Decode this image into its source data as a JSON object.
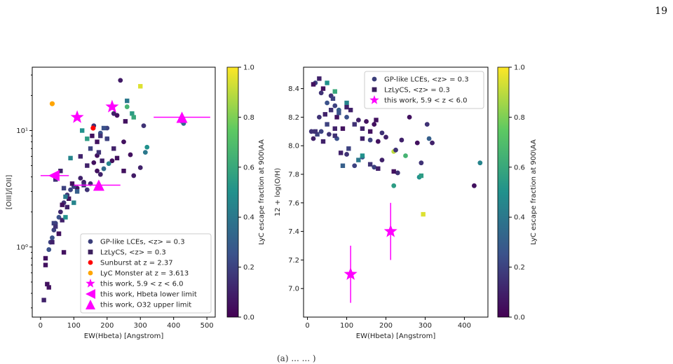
{
  "page_number": "19",
  "caption_fragment": "(a) ... ... )",
  "colormap": {
    "stops": [
      "#440154",
      "#3b528b",
      "#21918c",
      "#5ec962",
      "#fde725"
    ],
    "label": "LyC escape fraction at 900\\AA",
    "ticks": [
      "0.0",
      "0.2",
      "0.4",
      "0.6",
      "0.8",
      "1.0"
    ],
    "range": [
      0,
      1
    ]
  },
  "chart_data": [
    {
      "type": "scatter",
      "id": "left",
      "xlabel": "EW(Hbeta) [Angstrom]",
      "ylabel": "[OIII]/[OII]",
      "xlim": [
        -25,
        525
      ],
      "ylim": [
        0.25,
        35
      ],
      "yscale": "log",
      "xticks": [
        0,
        100,
        200,
        300,
        400,
        500
      ],
      "yticks": [
        {
          "v": 1,
          "label": "10⁰"
        },
        {
          "v": 10,
          "label": "10¹"
        }
      ],
      "legend_position": "lower-right",
      "legend": [
        {
          "marker": "circle",
          "color": "#3b3e7a",
          "label": "GP-like LCEs, <z> = 0.3"
        },
        {
          "marker": "square",
          "color": "#3b1f5c",
          "label": "LzLyCS, <z> = 0.3"
        },
        {
          "marker": "circle",
          "color": "#ff0000",
          "label": "Sunburst at z = 2.37"
        },
        {
          "marker": "circle",
          "color": "#ffa500",
          "label": "LyC Monster at z = 3.613"
        },
        {
          "marker": "star",
          "color": "#ff00ff",
          "label": "this work, 5.9 < z < 6.0"
        },
        {
          "marker": "triangle-left",
          "color": "#ff00ff",
          "label": "this work, Hbeta lower limit"
        },
        {
          "marker": "triangle-up",
          "color": "#ff00ff",
          "label": "this work, O32 upper limit"
        }
      ],
      "gp_circles": [
        [
          240,
          27,
          0.08
        ],
        [
          310,
          11,
          0.15
        ],
        [
          250,
          8,
          0.05
        ],
        [
          200,
          8.5,
          0.1
        ],
        [
          315,
          6.5,
          0.4
        ],
        [
          320,
          7.2,
          0.5
        ],
        [
          270,
          6.2,
          0.05
        ],
        [
          280,
          4.1,
          0.08
        ],
        [
          300,
          4.8,
          0.1
        ],
        [
          215,
          5.5,
          0.05
        ],
        [
          205,
          5.2,
          0.45
        ],
        [
          190,
          4.7,
          0.35
        ],
        [
          180,
          4.2,
          0.1
        ],
        [
          170,
          6.1,
          0.05
        ],
        [
          160,
          5.3,
          0.05
        ],
        [
          170,
          4.5,
          0.05
        ],
        [
          150,
          3.5,
          0.12
        ],
        [
          140,
          3.1,
          0.15
        ],
        [
          130,
          3.6,
          0.1
        ],
        [
          120,
          3.9,
          0.1
        ],
        [
          110,
          3.2,
          0.05
        ],
        [
          100,
          3.3,
          0.2
        ],
        [
          90,
          3.1,
          0.2
        ],
        [
          80,
          2.8,
          0.15
        ],
        [
          70,
          2.4,
          0.15
        ],
        [
          60,
          2.0,
          0.12
        ],
        [
          55,
          1.8,
          0.25
        ],
        [
          45,
          1.6,
          0.2
        ],
        [
          40,
          1.4,
          0.2
        ],
        [
          35,
          1.2,
          0.25
        ],
        [
          30,
          1.1,
          0.2
        ],
        [
          25,
          0.95,
          0.25
        ],
        [
          425,
          12,
          0.45
        ],
        [
          430,
          11.5,
          0.35
        ],
        [
          220,
          14,
          0.1
        ],
        [
          260,
          16,
          0.65
        ],
        [
          230,
          13.5,
          0.05
        ],
        [
          200,
          10.5,
          0.2
        ],
        [
          180,
          9.5,
          0.25
        ],
        [
          160,
          11,
          0.15
        ]
      ],
      "lz_squares": [
        [
          15,
          0.8,
          0.05
        ],
        [
          10,
          0.35,
          0.1
        ],
        [
          20,
          0.48,
          0.05
        ],
        [
          25,
          0.45,
          0.05
        ],
        [
          15,
          0.7,
          0.05
        ],
        [
          70,
          0.9,
          0.05
        ],
        [
          55,
          1.3,
          0.1
        ],
        [
          65,
          1.7,
          0.1
        ],
        [
          75,
          1.8,
          0.5
        ],
        [
          80,
          2.2,
          0.1
        ],
        [
          85,
          2.6,
          0.05
        ],
        [
          100,
          2.4,
          0.45
        ],
        [
          95,
          3.5,
          0.05
        ],
        [
          110,
          3.0,
          0.3
        ],
        [
          130,
          3.4,
          0.15
        ],
        [
          120,
          6.0,
          0.1
        ],
        [
          140,
          5.0,
          0.1
        ],
        [
          150,
          7.0,
          0.2
        ],
        [
          170,
          8.0,
          0.05
        ],
        [
          180,
          9.0,
          0.15
        ],
        [
          190,
          10.5,
          0.25
        ],
        [
          200,
          8.5,
          0.2
        ],
        [
          220,
          7.0,
          0.1
        ],
        [
          230,
          5.8,
          0.05
        ],
        [
          250,
          4.5,
          0.05
        ],
        [
          255,
          12,
          0.05
        ],
        [
          260,
          18,
          0.4
        ],
        [
          275,
          14,
          0.55
        ],
        [
          280,
          13,
          0.6
        ],
        [
          300,
          24,
          0.95
        ],
        [
          125,
          10,
          0.5
        ],
        [
          140,
          8.5,
          0.55
        ],
        [
          155,
          9,
          0.05
        ],
        [
          175,
          6.5,
          0.15
        ],
        [
          185,
          5.5,
          0.1
        ],
        [
          90,
          5.8,
          0.45
        ],
        [
          60,
          4.5,
          0.1
        ],
        [
          45,
          3.8,
          0.15
        ],
        [
          70,
          3.2,
          0.2
        ],
        [
          75,
          2.7,
          0.4
        ],
        [
          65,
          2.3,
          0.05
        ],
        [
          40,
          1.6,
          0.2
        ],
        [
          35,
          1.1,
          0.1
        ],
        [
          45,
          1.5,
          0.15
        ],
        [
          55,
          1.3,
          0.05
        ]
      ],
      "sunburst": [
        [
          158,
          10.5
        ]
      ],
      "lyc_monster": [
        [
          35,
          17
        ]
      ],
      "this_work_stars": [
        [
          110,
          13
        ],
        [
          215,
          16
        ]
      ],
      "hbeta_lower_limits": [
        [
          40,
          4.1,
          0,
          85
        ]
      ],
      "o32_upper_limits": [
        [
          175,
          3.4,
          100,
          240
        ],
        [
          425,
          13,
          340,
          510
        ]
      ]
    },
    {
      "type": "scatter",
      "id": "right",
      "xlabel": "EW(Hbeta) [Angstrom]",
      "ylabel": "12 + log(O/H)",
      "xlim": [
        -10,
        460
      ],
      "ylim": [
        6.8,
        8.55
      ],
      "xticks": [
        0,
        100,
        200,
        300,
        400
      ],
      "yticks": [
        7.0,
        7.2,
        7.4,
        7.6,
        7.8,
        8.0,
        8.2,
        8.4
      ],
      "legend_position": "top-right",
      "legend": [
        {
          "marker": "circle",
          "color": "#3b3e7a",
          "label": "GP-like LCEs, <z> = 0.3"
        },
        {
          "marker": "square",
          "color": "#3b1f5c",
          "label": "LzLyCS, <z> = 0.3"
        },
        {
          "marker": "star",
          "color": "#ff00ff",
          "label": "this work, 5.9 < z < 6.0"
        }
      ],
      "gp_circles": [
        [
          20,
          8.44,
          0.2
        ],
        [
          35,
          8.37,
          0.15
        ],
        [
          60,
          8.35,
          0.15
        ],
        [
          70,
          8.28,
          0.2
        ],
        [
          80,
          8.25,
          0.3
        ],
        [
          100,
          8.2,
          0.25
        ],
        [
          130,
          8.18,
          0.1
        ],
        [
          150,
          8.17,
          0.05
        ],
        [
          170,
          8.15,
          0.05
        ],
        [
          190,
          8.09,
          0.15
        ],
        [
          200,
          8.06,
          0.1
        ],
        [
          240,
          8.04,
          0.1
        ],
        [
          260,
          8.2,
          0.05
        ],
        [
          305,
          8.15,
          0.15
        ],
        [
          310,
          8.05,
          0.3
        ],
        [
          318,
          8.02,
          0.1
        ],
        [
          280,
          8.02,
          0.05
        ],
        [
          290,
          7.88,
          0.15
        ],
        [
          250,
          7.93,
          0.65
        ],
        [
          220,
          7.96,
          0.9
        ],
        [
          225,
          7.97,
          0.15
        ],
        [
          190,
          7.9,
          0.1
        ],
        [
          170,
          7.85,
          0.2
        ],
        [
          140,
          7.92,
          0.25
        ],
        [
          120,
          7.86,
          0.2
        ],
        [
          100,
          7.94,
          0.15
        ],
        [
          75,
          8.05,
          0.25
        ],
        [
          55,
          8.08,
          0.15
        ],
        [
          35,
          8.1,
          0.2
        ],
        [
          15,
          8.05,
          0.1
        ],
        [
          10,
          8.1,
          0.15
        ],
        [
          30,
          8.2,
          0.15
        ],
        [
          50,
          8.3,
          0.25
        ],
        [
          440,
          7.88,
          0.45
        ],
        [
          425,
          7.72,
          0.05
        ],
        [
          220,
          7.72,
          0.55
        ],
        [
          285,
          7.78,
          0.5
        ],
        [
          160,
          8.04,
          0.2
        ],
        [
          180,
          8.03,
          0.05
        ],
        [
          230,
          7.81,
          0.15
        ]
      ],
      "lz_squares": [
        [
          15,
          8.43,
          0.05
        ],
        [
          30,
          8.47,
          0.1
        ],
        [
          40,
          8.4,
          0.05
        ],
        [
          50,
          8.44,
          0.5
        ],
        [
          70,
          8.38,
          0.6
        ],
        [
          45,
          8.22,
          0.1
        ],
        [
          60,
          8.25,
          0.15
        ],
        [
          75,
          8.2,
          0.05
        ],
        [
          90,
          8.12,
          0.05
        ],
        [
          100,
          8.3,
          0.45
        ],
        [
          110,
          8.25,
          0.1
        ],
        [
          120,
          8.15,
          0.15
        ],
        [
          140,
          8.12,
          0.1
        ],
        [
          160,
          8.1,
          0.05
        ],
        [
          175,
          8.18,
          0.05
        ],
        [
          25,
          8.08,
          0.2
        ],
        [
          40,
          8.03,
          0.1
        ],
        [
          70,
          8.07,
          0.15
        ],
        [
          85,
          7.95,
          0.1
        ],
        [
          105,
          7.98,
          0.2
        ],
        [
          130,
          7.9,
          0.4
        ],
        [
          140,
          7.93,
          0.5
        ],
        [
          160,
          7.87,
          0.15
        ],
        [
          180,
          7.84,
          0.1
        ],
        [
          220,
          7.82,
          0.05
        ],
        [
          290,
          7.79,
          0.55
        ],
        [
          295,
          7.52,
          0.95
        ],
        [
          90,
          7.86,
          0.3
        ],
        [
          50,
          8.15,
          0.2
        ],
        [
          20,
          8.1,
          0.15
        ],
        [
          65,
          8.33,
          0.2
        ],
        [
          80,
          8.23,
          0.25
        ],
        [
          100,
          8.27,
          0.1
        ],
        [
          140,
          8.05,
          0.1
        ],
        [
          70,
          8.12,
          0.1
        ]
      ],
      "this_work_stars": [
        [
          110,
          7.1,
          6.9,
          7.3
        ],
        [
          212,
          7.4,
          7.2,
          7.6
        ]
      ]
    }
  ]
}
